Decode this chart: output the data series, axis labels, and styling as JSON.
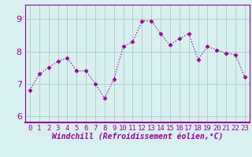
{
  "x": [
    0,
    1,
    2,
    3,
    4,
    5,
    6,
    7,
    8,
    9,
    10,
    11,
    12,
    13,
    14,
    15,
    16,
    17,
    18,
    19,
    20,
    21,
    22,
    23
  ],
  "y": [
    6.8,
    7.3,
    7.5,
    7.7,
    7.8,
    7.4,
    7.4,
    7.0,
    6.55,
    7.15,
    8.15,
    8.3,
    8.95,
    8.95,
    8.55,
    8.2,
    8.4,
    8.55,
    7.75,
    8.15,
    8.05,
    7.95,
    7.9,
    7.2
  ],
  "line_color": "#990099",
  "marker": "D",
  "marker_size": 2.5,
  "bg_color": "#d8f0f0",
  "grid_color": "#b0c8c8",
  "xlabel": "Windchill (Refroidissement éolien,°C)",
  "xlabel_fontsize": 7,
  "tick_fontsize": 6.5,
  "ytick_fontsize": 8,
  "ylim": [
    5.8,
    9.45
  ],
  "xlim": [
    -0.5,
    23.5
  ],
  "yticks": [
    6,
    7,
    8,
    9
  ],
  "xticks": [
    0,
    1,
    2,
    3,
    4,
    5,
    6,
    7,
    8,
    9,
    10,
    11,
    12,
    13,
    14,
    15,
    16,
    17,
    18,
    19,
    20,
    21,
    22,
    23
  ]
}
